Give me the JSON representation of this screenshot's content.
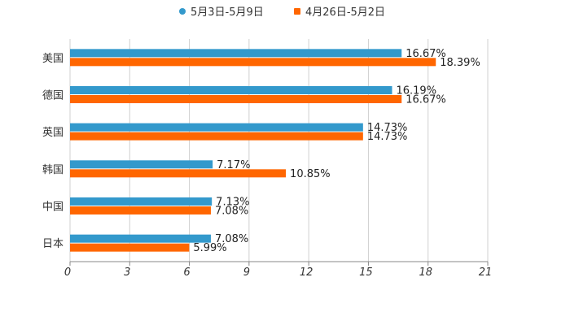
{
  "chart_data": {
    "type": "bar",
    "orientation": "horizontal",
    "title": "",
    "xlabel": "",
    "ylabel": "",
    "xlim": [
      0,
      21
    ],
    "xticks": [
      0,
      3,
      6,
      9,
      12,
      15,
      18,
      21
    ],
    "grid": true,
    "legend_position": "top-center",
    "categories": [
      "美国",
      "德国",
      "英国",
      "韩国",
      "中国",
      "日本"
    ],
    "series": [
      {
        "name": "5月3日-5月9日",
        "color": "#3399CC",
        "values": [
          16.67,
          16.19,
          14.73,
          7.17,
          7.13,
          7.08
        ],
        "labels": [
          "16.67%",
          "16.19%",
          "14.73%",
          "7.17%",
          "7.13%",
          "7.08%"
        ]
      },
      {
        "name": "4月26日-5月2日",
        "color": "#FF6600",
        "values": [
          18.39,
          16.67,
          14.73,
          10.85,
          7.08,
          5.99
        ],
        "labels": [
          "18.39%",
          "16.67%",
          "14.73%",
          "10.85%",
          "7.08%",
          "5.99%"
        ]
      }
    ]
  }
}
